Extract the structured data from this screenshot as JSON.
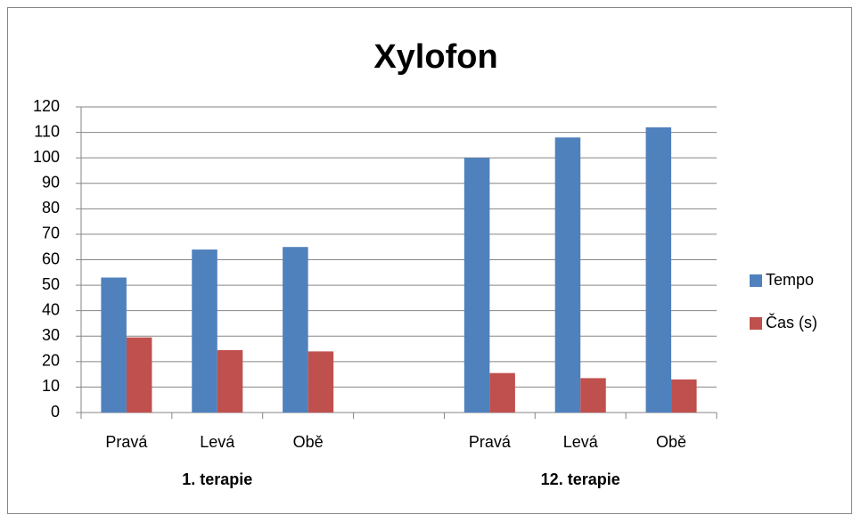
{
  "chart_data": {
    "type": "bar",
    "title": "Xylofon",
    "categories": [
      "Pravá",
      "Levá",
      "Obě",
      null,
      "Pravá",
      "Levá",
      "Obě"
    ],
    "groups": [
      {
        "name": "1. terapie",
        "start": 0,
        "end": 2
      },
      {
        "name": "12. terapie",
        "start": 4,
        "end": 6
      }
    ],
    "series": [
      {
        "name": "Tempo",
        "color": "#4f81bd",
        "values": [
          53,
          64,
          65,
          null,
          100,
          108,
          112
        ]
      },
      {
        "name": "Čas (s)",
        "color": "#c0504d",
        "values": [
          29.5,
          24.5,
          24,
          null,
          15.5,
          13.5,
          13
        ]
      }
    ],
    "ylim": [
      0,
      120
    ],
    "yticks": [
      0,
      10,
      20,
      30,
      40,
      50,
      60,
      70,
      80,
      90,
      100,
      110,
      120
    ],
    "grid": true,
    "legend": "right"
  }
}
